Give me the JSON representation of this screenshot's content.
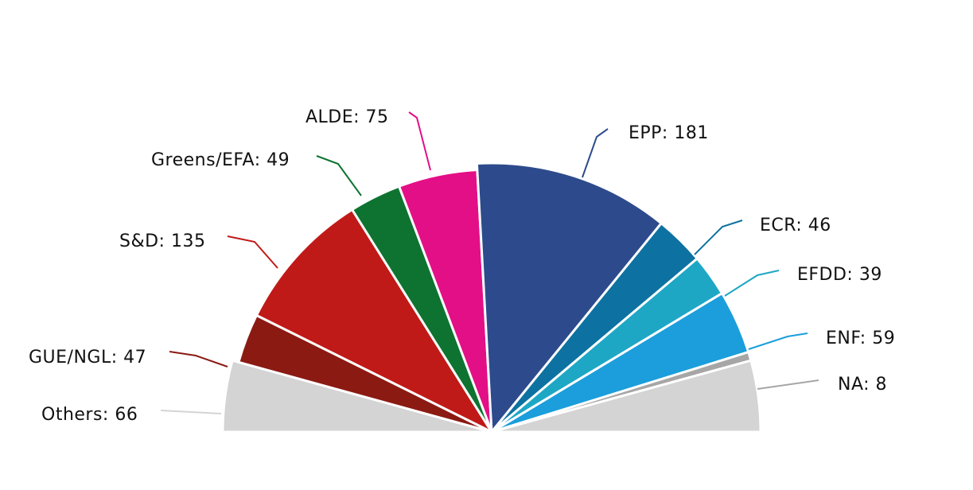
{
  "chart_data": {
    "type": "pie",
    "variant": "parliament-semicircle",
    "title": "",
    "legend": "none",
    "series": [
      {
        "name": "Others",
        "label": "Others: 66",
        "value": 66,
        "color": "#d4d4d4"
      },
      {
        "name": "GUE/NGL",
        "label": "GUE/NGL: 47",
        "value": 47,
        "color": "#8b1a13"
      },
      {
        "name": "S&D",
        "label": "S&D: 135",
        "value": 135,
        "color": "#c01a18"
      },
      {
        "name": "Greens/EFA",
        "label": "Greens/EFA: 49",
        "value": 49,
        "color": "#0e7331"
      },
      {
        "name": "ALDE",
        "label": "ALDE: 75",
        "value": 75,
        "color": "#e30f86"
      },
      {
        "name": "EPP",
        "label": "EPP: 181",
        "value": 181,
        "color": "#2d4b8c"
      },
      {
        "name": "ECR",
        "label": "ECR: 46",
        "value": 46,
        "color": "#0d72a1"
      },
      {
        "name": "EFDD",
        "label": "EFDD: 39",
        "value": 39,
        "color": "#1ea7c5"
      },
      {
        "name": "ENF",
        "label": "ENF: 59",
        "value": 59,
        "color": "#1b9edb"
      },
      {
        "name": "NA",
        "label": "NA: 8",
        "value": 8,
        "color": "#a6a6a6"
      },
      {
        "name": "Others",
        "label": "",
        "value": 66,
        "color": "#d4d4d4"
      }
    ]
  }
}
